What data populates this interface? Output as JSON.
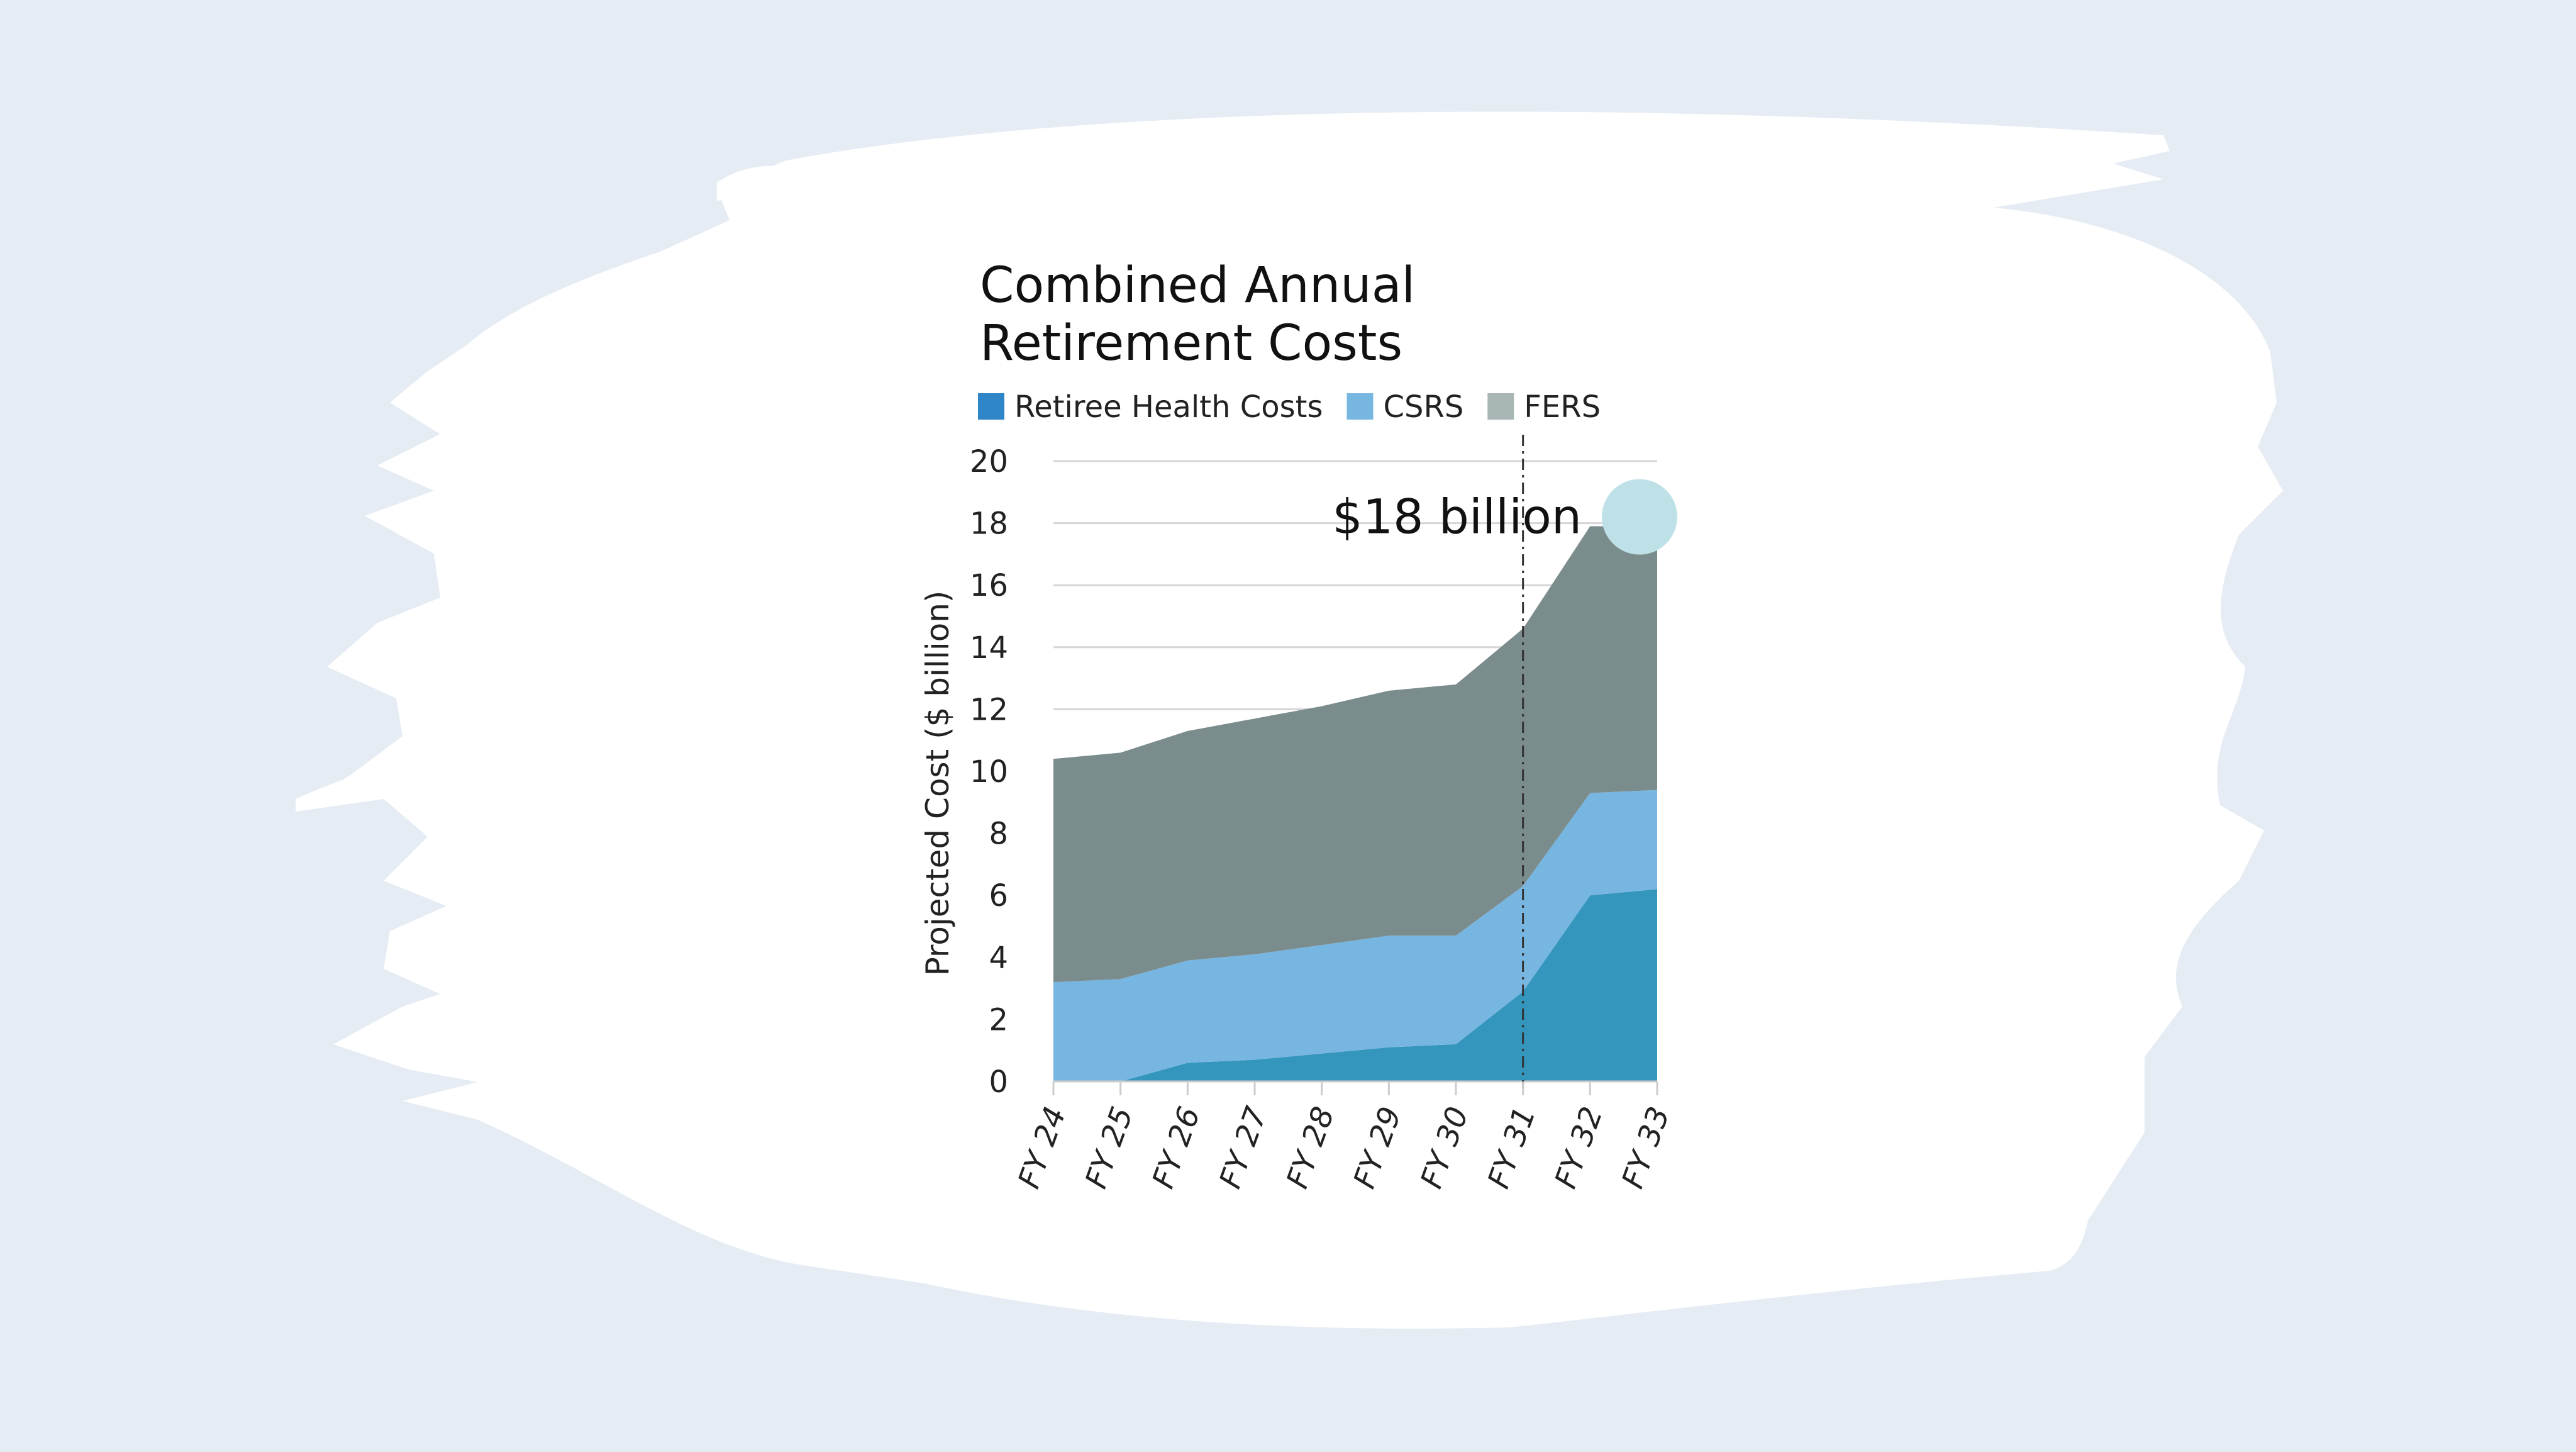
{
  "chart_data": {
    "type": "area",
    "stacked": true,
    "title_lines": [
      "Combined Annual",
      "Retirement Costs"
    ],
    "ylabel": "Projected Cost ($ billion)",
    "xlabel": "",
    "ylim": [
      0,
      20
    ],
    "yticks": [
      0,
      2,
      4,
      6,
      8,
      10,
      12,
      14,
      16,
      18,
      20
    ],
    "ytick_labels": [
      "0",
      "2",
      "4",
      "6",
      "8",
      "10",
      "12",
      "14",
      "16",
      "18",
      "20"
    ],
    "grid": true,
    "categories": [
      "FY 24",
      "FY 25",
      "FY 26",
      "FY 27",
      "FY 28",
      "FY 29",
      "FY 30",
      "FY 31",
      "FY 32",
      "FY 33"
    ],
    "series": [
      {
        "name": "Retiree Health Costs",
        "color": "#3596bd",
        "legend_color": "#2e86c8",
        "values": [
          0.0,
          0.0,
          0.6,
          0.7,
          0.9,
          1.1,
          1.2,
          2.9,
          6.0,
          6.2
        ]
      },
      {
        "name": "CSRS",
        "color": "#78b6e2",
        "legend_color": "#78b6e2",
        "values": [
          3.2,
          3.3,
          3.3,
          3.4,
          3.5,
          3.6,
          3.5,
          3.4,
          3.3,
          3.2
        ]
      },
      {
        "name": "FERS",
        "color": "#7b8c8d",
        "legend_color": "#a9b6b6",
        "values": [
          7.2,
          7.3,
          7.4,
          7.6,
          7.7,
          7.9,
          8.1,
          8.3,
          8.6,
          8.5
        ]
      }
    ],
    "annotation": {
      "text": "$18 billion",
      "category": "FY 33",
      "value": 18,
      "marker_color": "#bde1e6",
      "reference_line_category": "FY 31"
    }
  }
}
